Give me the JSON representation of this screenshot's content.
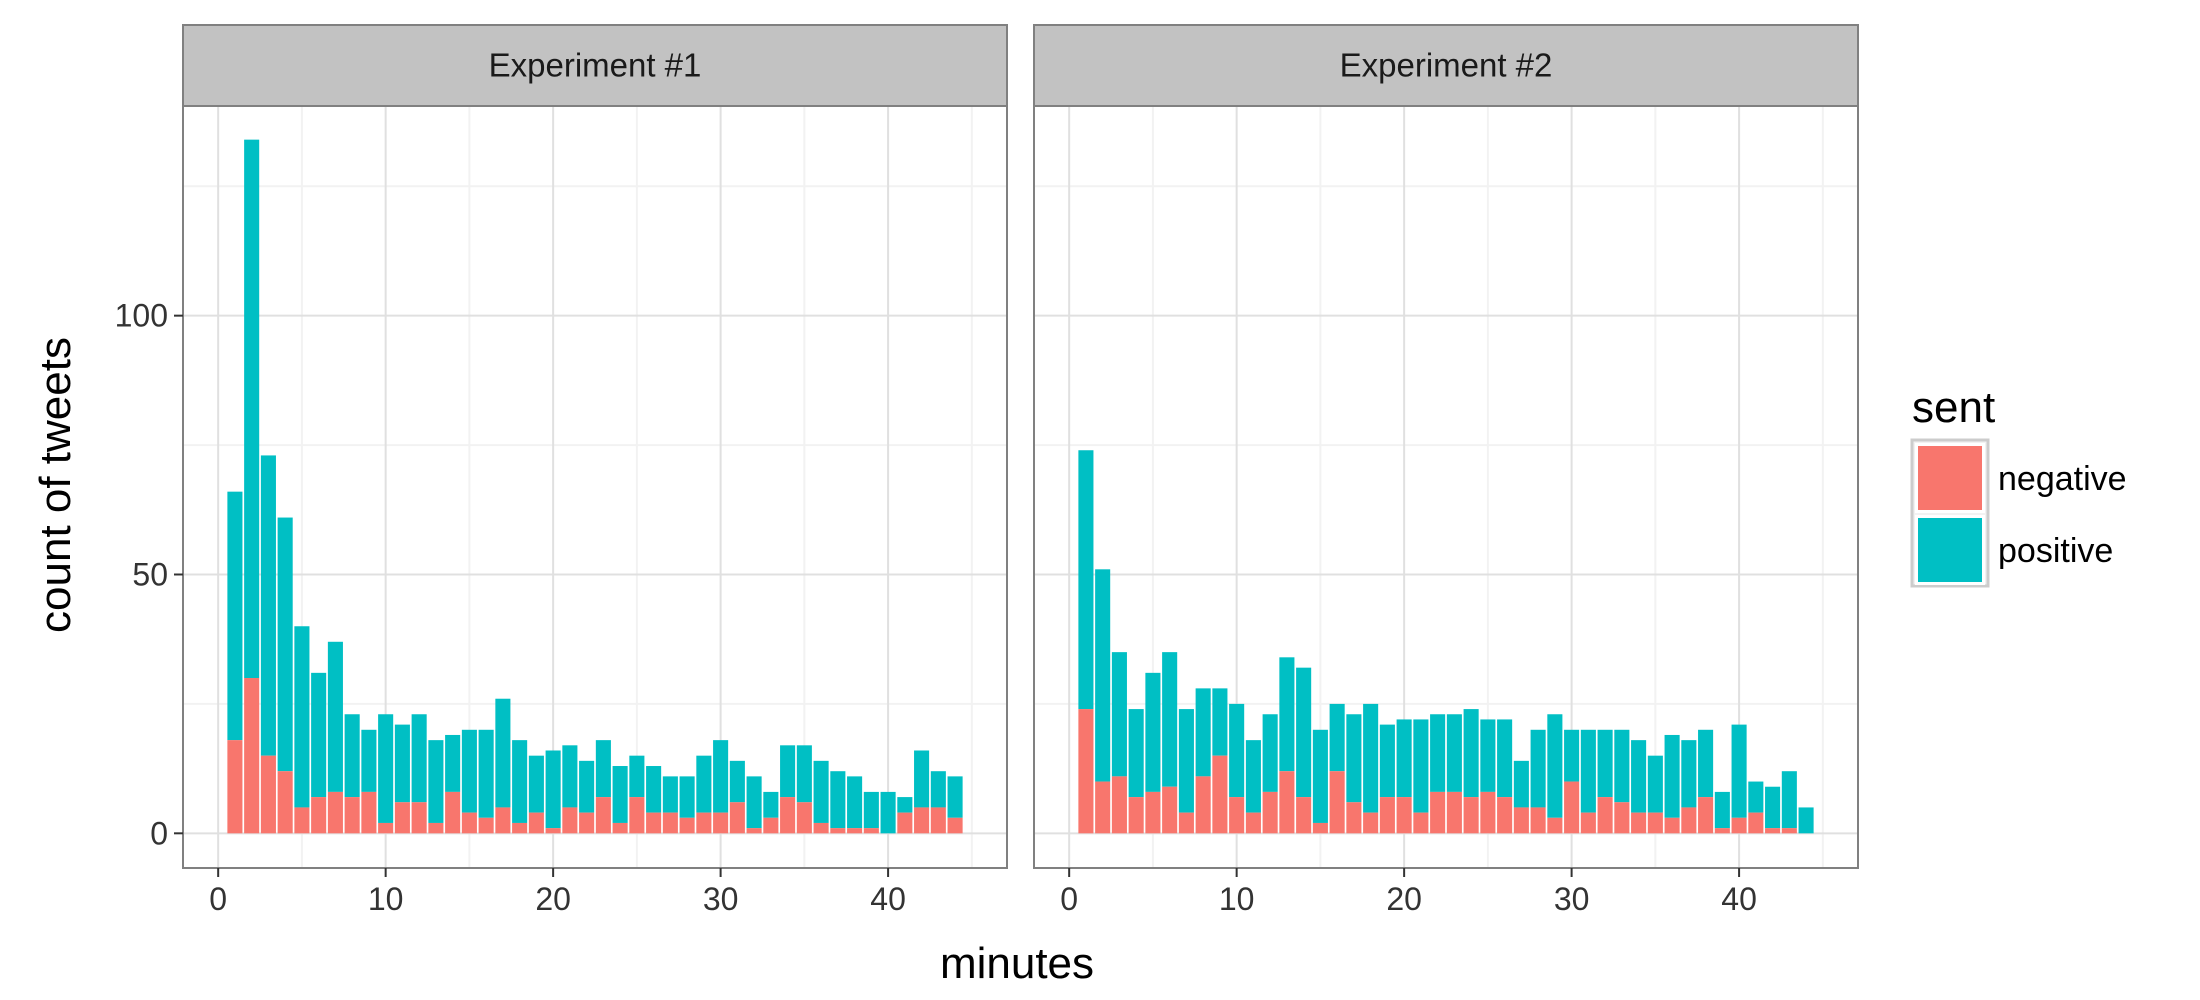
{
  "chart_data": {
    "type": "bar",
    "stacked": true,
    "xlabel": "minutes",
    "ylabel": "count of tweets",
    "x_ticks": [
      0,
      10,
      20,
      30,
      40
    ],
    "y_ticks": [
      0,
      50,
      100
    ],
    "xlim": [
      -2.1,
      47.1
    ],
    "ylim": [
      -6.7,
      140.5
    ],
    "grid": true,
    "legend": {
      "title": "sent",
      "placement": "right",
      "entries": [
        {
          "name": "negative",
          "color": "#F8766D"
        },
        {
          "name": "positive",
          "color": "#00BFC4"
        }
      ]
    },
    "panels": [
      {
        "title": "Experiment #1",
        "x": [
          1,
          2,
          3,
          4,
          5,
          6,
          7,
          8,
          9,
          10,
          11,
          12,
          13,
          14,
          15,
          16,
          17,
          18,
          19,
          20,
          21,
          22,
          23,
          24,
          25,
          26,
          27,
          28,
          29,
          30,
          31,
          32,
          33,
          34,
          35,
          36,
          37,
          38,
          39,
          40,
          41,
          42,
          43,
          44
        ],
        "series": [
          {
            "name": "negative",
            "values": [
              18,
              30,
              15,
              12,
              5,
              7,
              8,
              7,
              8,
              2,
              6,
              6,
              2,
              8,
              4,
              3,
              5,
              2,
              4,
              1,
              5,
              4,
              7,
              2,
              7,
              4,
              4,
              3,
              4,
              4,
              6,
              1,
              3,
              7,
              6,
              2,
              1,
              1,
              1,
              0,
              4,
              5,
              5,
              3
            ]
          },
          {
            "name": "positive",
            "values": [
              48,
              104,
              58,
              49,
              35,
              24,
              29,
              16,
              12,
              21,
              15,
              17,
              16,
              11,
              16,
              17,
              21,
              16,
              11,
              15,
              12,
              10,
              11,
              11,
              8,
              9,
              7,
              8,
              11,
              14,
              8,
              10,
              5,
              10,
              11,
              12,
              11,
              10,
              7,
              8,
              3,
              11,
              7,
              8
            ]
          }
        ]
      },
      {
        "title": "Experiment #2",
        "x": [
          1,
          2,
          3,
          4,
          5,
          6,
          7,
          8,
          9,
          10,
          11,
          12,
          13,
          14,
          15,
          16,
          17,
          18,
          19,
          20,
          21,
          22,
          23,
          24,
          25,
          26,
          27,
          28,
          29,
          30,
          31,
          32,
          33,
          34,
          35,
          36,
          37,
          38,
          39,
          40,
          41,
          42,
          43,
          44
        ],
        "series": [
          {
            "name": "negative",
            "values": [
              24,
              10,
              11,
              7,
              8,
              9,
              4,
              11,
              15,
              7,
              4,
              8,
              12,
              7,
              2,
              12,
              6,
              4,
              7,
              7,
              4,
              8,
              8,
              7,
              8,
              7,
              5,
              5,
              3,
              10,
              4,
              7,
              6,
              4,
              4,
              3,
              5,
              7,
              1,
              3,
              4,
              1,
              1,
              0
            ]
          },
          {
            "name": "positive",
            "values": [
              50,
              41,
              24,
              17,
              23,
              26,
              20,
              17,
              13,
              18,
              14,
              15,
              22,
              25,
              18,
              13,
              17,
              21,
              14,
              15,
              18,
              15,
              15,
              17,
              14,
              15,
              9,
              15,
              20,
              10,
              16,
              13,
              14,
              14,
              11,
              16,
              13,
              13,
              7,
              18,
              6,
              8,
              11,
              5
            ]
          }
        ]
      }
    ]
  }
}
